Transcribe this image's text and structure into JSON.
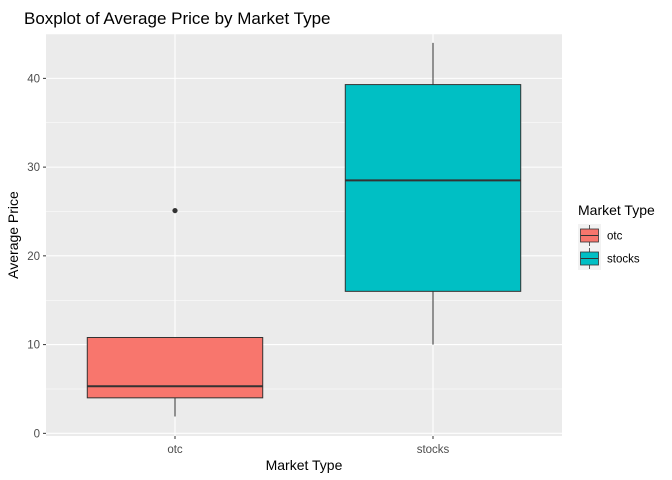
{
  "chart_data": {
    "type": "boxplot",
    "title": "Boxplot of Average Price by Market Type",
    "xlabel": "Market Type",
    "ylabel": "Average Price",
    "ylim": [
      -0.3,
      45
    ],
    "y_ticks": [
      0,
      10,
      20,
      30,
      40
    ],
    "grid": true,
    "legend_position": "right",
    "legend_title": "Market Type",
    "categories": [
      "otc",
      "stocks"
    ],
    "boxes": [
      {
        "category": "otc",
        "color": "#F8766D",
        "whisker_low": 1.9,
        "q1": 4.0,
        "median": 5.3,
        "q3": 10.8,
        "whisker_high": 10.8,
        "outliers": [
          25.1
        ]
      },
      {
        "category": "stocks",
        "color": "#00BFC4",
        "whisker_low": 10.0,
        "q1": 16.0,
        "median": 28.5,
        "q3": 39.3,
        "whisker_high": 44.0,
        "outliers": []
      }
    ],
    "colors": {
      "panel": "#EBEBEB",
      "grid_major": "#FFFFFF",
      "outline": "#333333"
    }
  }
}
